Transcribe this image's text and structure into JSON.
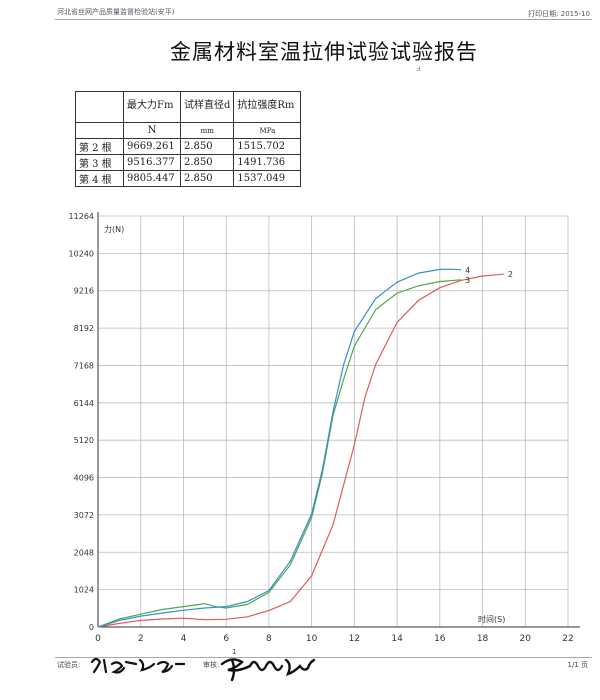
{
  "header": {
    "organization": "河北省丝网产品质量监督检验站(安平)",
    "print_date": "打印日期: 2015-10"
  },
  "title": "金属材料室温拉伸试验试验报告",
  "results_table": {
    "columns": [
      "最大力Fm",
      "试样直径d",
      "抗拉强度Rm"
    ],
    "units": [
      "N",
      "mm",
      "MPa"
    ],
    "rows": [
      {
        "label": "第 2 根",
        "fm": "9669.261",
        "d": "2.850",
        "rm": "1515.702"
      },
      {
        "label": "第 3 根",
        "fm": "9516.377",
        "d": "2.850",
        "rm": "1491.736"
      },
      {
        "label": "第 4 根",
        "fm": "9805.447",
        "d": "2.850",
        "rm": "1537.049"
      }
    ]
  },
  "chart_data": {
    "type": "line",
    "ylabel": "力(N)",
    "xlabel": "时间(S)",
    "xlim": [
      0,
      22
    ],
    "ylim": [
      0,
      11264
    ],
    "x_ticks": [
      "0",
      "2",
      "4",
      "6",
      "8",
      "10",
      "12",
      "14",
      "16",
      "18",
      "20",
      "22"
    ],
    "y_ticks": [
      "0",
      "1024",
      "2048",
      "3072",
      "4096",
      "5120",
      "6144",
      "7168",
      "8192",
      "9216",
      "10240",
      "11264"
    ],
    "grid": true,
    "series": [
      {
        "name": "2",
        "color": "#e05a5a",
        "x": [
          0,
          1,
          2,
          3,
          4,
          5,
          6,
          7,
          8,
          9,
          10,
          11,
          12,
          12.5,
          13,
          14,
          15,
          16,
          17,
          18,
          19
        ],
        "y": [
          0,
          100,
          180,
          220,
          240,
          200,
          210,
          280,
          450,
          700,
          1400,
          2800,
          5000,
          6300,
          7200,
          8350,
          8950,
          9300,
          9500,
          9620,
          9670
        ]
      },
      {
        "name": "3",
        "color": "#4aa84a",
        "x": [
          0,
          1,
          2,
          3,
          4,
          4.5,
          5,
          5.5,
          6,
          7,
          8,
          9,
          10,
          10.5,
          11,
          11.5,
          12,
          13,
          14,
          15,
          16,
          17
        ],
        "y": [
          0,
          220,
          350,
          480,
          560,
          600,
          640,
          560,
          520,
          620,
          950,
          1700,
          3000,
          4200,
          5800,
          6800,
          7700,
          8700,
          9150,
          9350,
          9470,
          9516
        ]
      },
      {
        "name": "4",
        "color": "#3a8fc8",
        "x": [
          0,
          1,
          2,
          3,
          4,
          5,
          6,
          7,
          8,
          9,
          10,
          10.5,
          11,
          11.5,
          12,
          13,
          14,
          15,
          16,
          16.5,
          17
        ],
        "y": [
          0,
          180,
          300,
          380,
          460,
          520,
          560,
          700,
          1000,
          1800,
          3100,
          4300,
          5900,
          7200,
          8100,
          9000,
          9450,
          9700,
          9800,
          9805,
          9790
        ]
      }
    ]
  },
  "footer": {
    "tester_label": "试验员:",
    "reviewer_label": "审核:",
    "mark": "1",
    "page": "1/1 页"
  }
}
